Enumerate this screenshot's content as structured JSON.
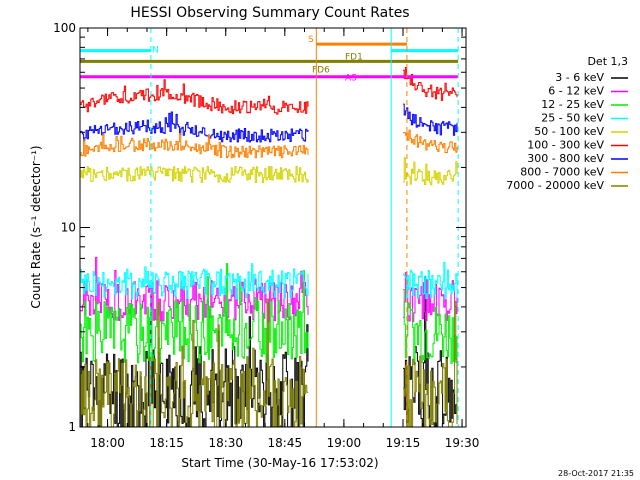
{
  "chart_data": {
    "type": "line",
    "title": "HESSI Observing Summary Count Rates",
    "ylabel": "Count Rate (s⁻¹ detector⁻¹)",
    "xlabel": "Start Time (30-May-16 17:53:02)",
    "x_axis": {
      "unit": "time (HH:MM)",
      "range": [
        "17:53",
        "19:31"
      ],
      "ticks": [
        "18:00",
        "18:15",
        "18:30",
        "18:45",
        "19:00",
        "19:15",
        "19:30"
      ]
    },
    "y_axis": {
      "scale": "log",
      "range": [
        1,
        100
      ],
      "tick_labels": [
        "1",
        "10",
        "100"
      ]
    },
    "legend": {
      "placement": "right",
      "header": "Det 1,3"
    },
    "series": [
      {
        "name": "3 - 6 keV",
        "color": "#000000",
        "segments": [
          {
            "start": "17:53",
            "end": "18:51",
            "level": 1.5,
            "spread": 0.7,
            "seed": 11
          },
          {
            "start": "19:15",
            "end": "19:29",
            "level": 1.5,
            "spread": 0.7,
            "seed": 12
          }
        ]
      },
      {
        "name": "6 - 12 keV",
        "color": "#ff00ff",
        "segments": [
          {
            "start": "17:53",
            "end": "18:51",
            "level": 4.3,
            "spread": 0.3,
            "seed": 21
          },
          {
            "start": "19:15",
            "end": "19:29",
            "level": 4.3,
            "spread": 0.3,
            "seed": 22
          }
        ]
      },
      {
        "name": "12 - 25 keV",
        "color": "#00ee00",
        "segments": [
          {
            "start": "17:53",
            "end": "18:51",
            "level": 3.0,
            "spread": 0.45,
            "seed": 31
          },
          {
            "start": "19:15",
            "end": "19:29",
            "level": 3.0,
            "spread": 0.45,
            "seed": 32
          }
        ]
      },
      {
        "name": "25 - 50 keV",
        "color": "#00ffff",
        "segments": [
          {
            "start": "17:53",
            "end": "18:51",
            "level": 5.2,
            "spread": 0.22,
            "seed": 41
          },
          {
            "start": "19:15",
            "end": "19:29",
            "level": 5.2,
            "spread": 0.22,
            "seed": 42
          }
        ]
      },
      {
        "name": "50 - 100 keV",
        "color": "#d4d400",
        "segments": [
          {
            "start": "17:53",
            "end": "18:51",
            "level": 18.5,
            "spread": 0.12,
            "seed": 51
          },
          {
            "start": "19:15",
            "end": "19:29",
            "level": 18.0,
            "spread": 0.12,
            "seed": 52
          }
        ]
      },
      {
        "name": "100 - 300 keV",
        "color": "#ff0000",
        "segments": [
          {
            "start": "17:53",
            "end": "18:51",
            "level": 40,
            "spread": 0.1,
            "seed": 61,
            "hump": 6
          },
          {
            "start": "19:15",
            "end": "19:29",
            "level": 46,
            "spread": 0.1,
            "seed": 62,
            "decay": 15
          }
        ]
      },
      {
        "name": "300 - 800 keV",
        "color": "#0000ff",
        "segments": [
          {
            "start": "17:53",
            "end": "18:51",
            "level": 29,
            "spread": 0.1,
            "seed": 71,
            "hump": 3
          },
          {
            "start": "19:15",
            "end": "19:29",
            "level": 31,
            "spread": 0.1,
            "seed": 72,
            "decay": 8
          }
        ]
      },
      {
        "name": "800 - 7000 keV",
        "color": "#ff8000",
        "segments": [
          {
            "start": "17:53",
            "end": "18:51",
            "level": 24,
            "spread": 0.09,
            "seed": 81,
            "hump": 2
          },
          {
            "start": "19:15",
            "end": "19:29",
            "level": 25,
            "spread": 0.09,
            "seed": 82,
            "decay": 6
          }
        ]
      },
      {
        "name": "7000 - 20000 keV",
        "color": "#808000",
        "segments": [
          {
            "start": "17:53",
            "end": "18:51",
            "level": 1.4,
            "spread": 0.6,
            "seed": 91
          },
          {
            "start": "19:15",
            "end": "19:29",
            "level": 1.4,
            "spread": 0.6,
            "seed": 92
          }
        ]
      }
    ],
    "flag_bars": [
      {
        "label": "N",
        "color": "#00ffff",
        "level": 77,
        "intervals": [
          [
            "17:53",
            "18:11"
          ],
          [
            "19:12",
            "19:29"
          ]
        ]
      },
      {
        "label": "S",
        "color": "#ff8000",
        "level": 83,
        "intervals": [
          [
            "18:53",
            "19:16"
          ]
        ]
      },
      {
        "label": "FD1",
        "color": "#808000",
        "level": 68,
        "intervals": [
          [
            "17:53",
            "19:29"
          ]
        ]
      },
      {
        "label": "FD6",
        "color": "#808000",
        "level": 68,
        "intervals": []
      },
      {
        "label": "AS",
        "color": "#ff00ff",
        "level": 57,
        "intervals": [
          [
            "17:53",
            "19:29"
          ]
        ]
      }
    ],
    "vertical_markers": [
      {
        "time": "18:11",
        "color": "#00ffff",
        "style": "dashed"
      },
      {
        "time": "18:53",
        "color": "#ff8000",
        "style": "solid"
      },
      {
        "time": "19:12",
        "color": "#00ffff",
        "style": "solid"
      },
      {
        "time": "19:16",
        "color": "#ff8000",
        "style": "dashed"
      },
      {
        "time": "19:29",
        "color": "#00ffff",
        "style": "dashed"
      }
    ]
  },
  "footer": {
    "timestamp": "28-Oct-2017 21:35"
  }
}
